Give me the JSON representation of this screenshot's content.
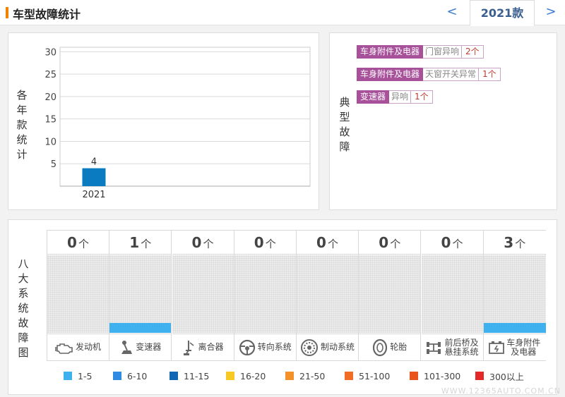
{
  "header": {
    "title": "车型故障统计",
    "prev_label": "<",
    "year_tab": "2021款",
    "next_label": ">"
  },
  "chart_panel": {
    "side_label": [
      "各",
      "年",
      "款",
      "统",
      "计"
    ]
  },
  "chart_data": {
    "type": "bar",
    "categories": [
      "2021"
    ],
    "values": [
      4
    ],
    "data_labels": [
      "4"
    ],
    "yticks": [
      5,
      10,
      15,
      20,
      25,
      30
    ],
    "ylim": [
      0,
      31
    ],
    "grid": true,
    "bar_color": "#0a7bc1"
  },
  "typical": {
    "side_label": [
      "典",
      "型",
      "故",
      "障"
    ],
    "faults": [
      {
        "category": "车身附件及电器",
        "description": "门窗异响",
        "count": "2个"
      },
      {
        "category": "车身附件及电器",
        "description": "天窗开关异常",
        "count": "1个"
      },
      {
        "category": "变速器",
        "description": "异响",
        "count": "1个"
      }
    ]
  },
  "eight": {
    "side_label": [
      "八",
      "大",
      "系",
      "统",
      "故",
      "障",
      "图"
    ],
    "unit": "个",
    "systems": [
      {
        "name": "发动机",
        "name2": "",
        "count": "0",
        "icon": "engine-icon",
        "level": 0
      },
      {
        "name": "变速器",
        "name2": "",
        "count": "1",
        "icon": "gear-shift-icon",
        "level": 1
      },
      {
        "name": "离合器",
        "name2": "",
        "count": "0",
        "icon": "clutch-pedal-icon",
        "level": 0
      },
      {
        "name": "转向系统",
        "name2": "",
        "count": "0",
        "icon": "steering-wheel-icon",
        "level": 0
      },
      {
        "name": "制动系统",
        "name2": "",
        "count": "0",
        "icon": "brake-disc-icon",
        "level": 0
      },
      {
        "name": "轮胎",
        "name2": "",
        "count": "0",
        "icon": "tire-icon",
        "level": 0
      },
      {
        "name": "前后桥及",
        "name2": "悬挂系统",
        "count": "0",
        "icon": "axle-icon",
        "level": 0
      },
      {
        "name": "车身附件",
        "name2": "及电器",
        "count": "3",
        "icon": "battery-icon",
        "level": 1
      }
    ],
    "legend": [
      {
        "label": "1-5",
        "color": "#3fb1ee"
      },
      {
        "label": "6-10",
        "color": "#2f8be2"
      },
      {
        "label": "11-15",
        "color": "#1267b3"
      },
      {
        "label": "16-20",
        "color": "#f6c924"
      },
      {
        "label": "21-50",
        "color": "#f3922b"
      },
      {
        "label": "51-100",
        "color": "#f06d28"
      },
      {
        "label": "101-300",
        "color": "#e9541e"
      },
      {
        "label": "300以上",
        "color": "#e3282a"
      }
    ]
  },
  "watermark": "WWW.12365AUTO.COM.CN"
}
